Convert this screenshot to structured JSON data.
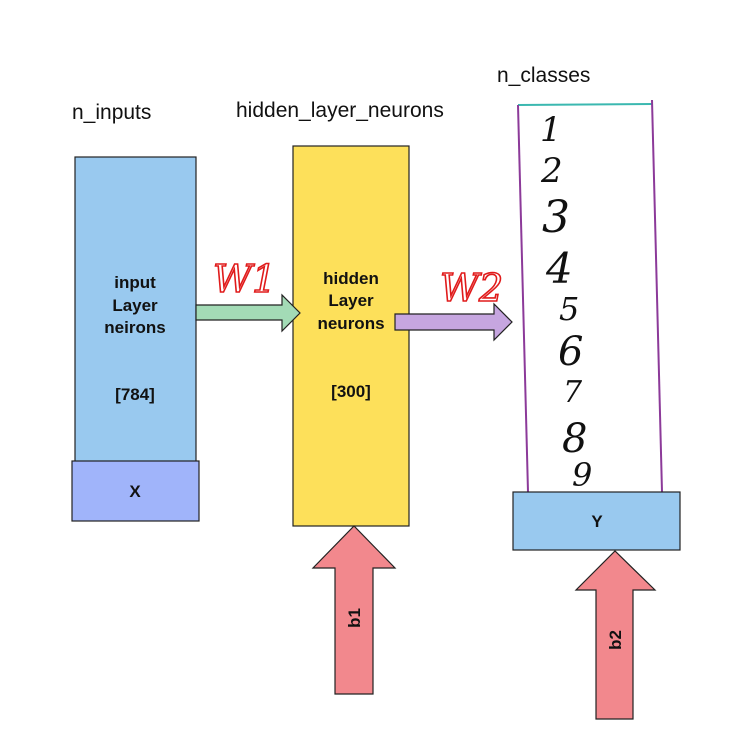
{
  "headers": {
    "n_inputs": "n_inputs",
    "hidden": "hidden_layer_neurons",
    "n_classes": "n_classes"
  },
  "input_block": {
    "line1": "input",
    "line2": "Layer",
    "line3": "neirons",
    "size": "[784]",
    "var": "X"
  },
  "hidden_block": {
    "line1": "hidden",
    "line2": "Layer",
    "line3": "neurons",
    "size": "[300]"
  },
  "output_block": {
    "var": "Y",
    "digits": [
      "1",
      "2",
      "3",
      "4",
      "5",
      "6",
      "7",
      "8",
      "9"
    ]
  },
  "weights": {
    "w1": "W1",
    "w2": "W2"
  },
  "biases": {
    "b1": "b1",
    "b2": "b2"
  },
  "colors": {
    "input_fill": "#99c9ef",
    "x_fill": "#a0b4fa",
    "hidden_fill": "#fde05a",
    "y_fill": "#99c9ef",
    "w1_arrow": "#a3dbb6",
    "w2_arrow": "#c6a6e0",
    "bias_arrow": "#f2888d",
    "hand_red": "#e01b1b",
    "purple_line": "#8c3a99"
  }
}
